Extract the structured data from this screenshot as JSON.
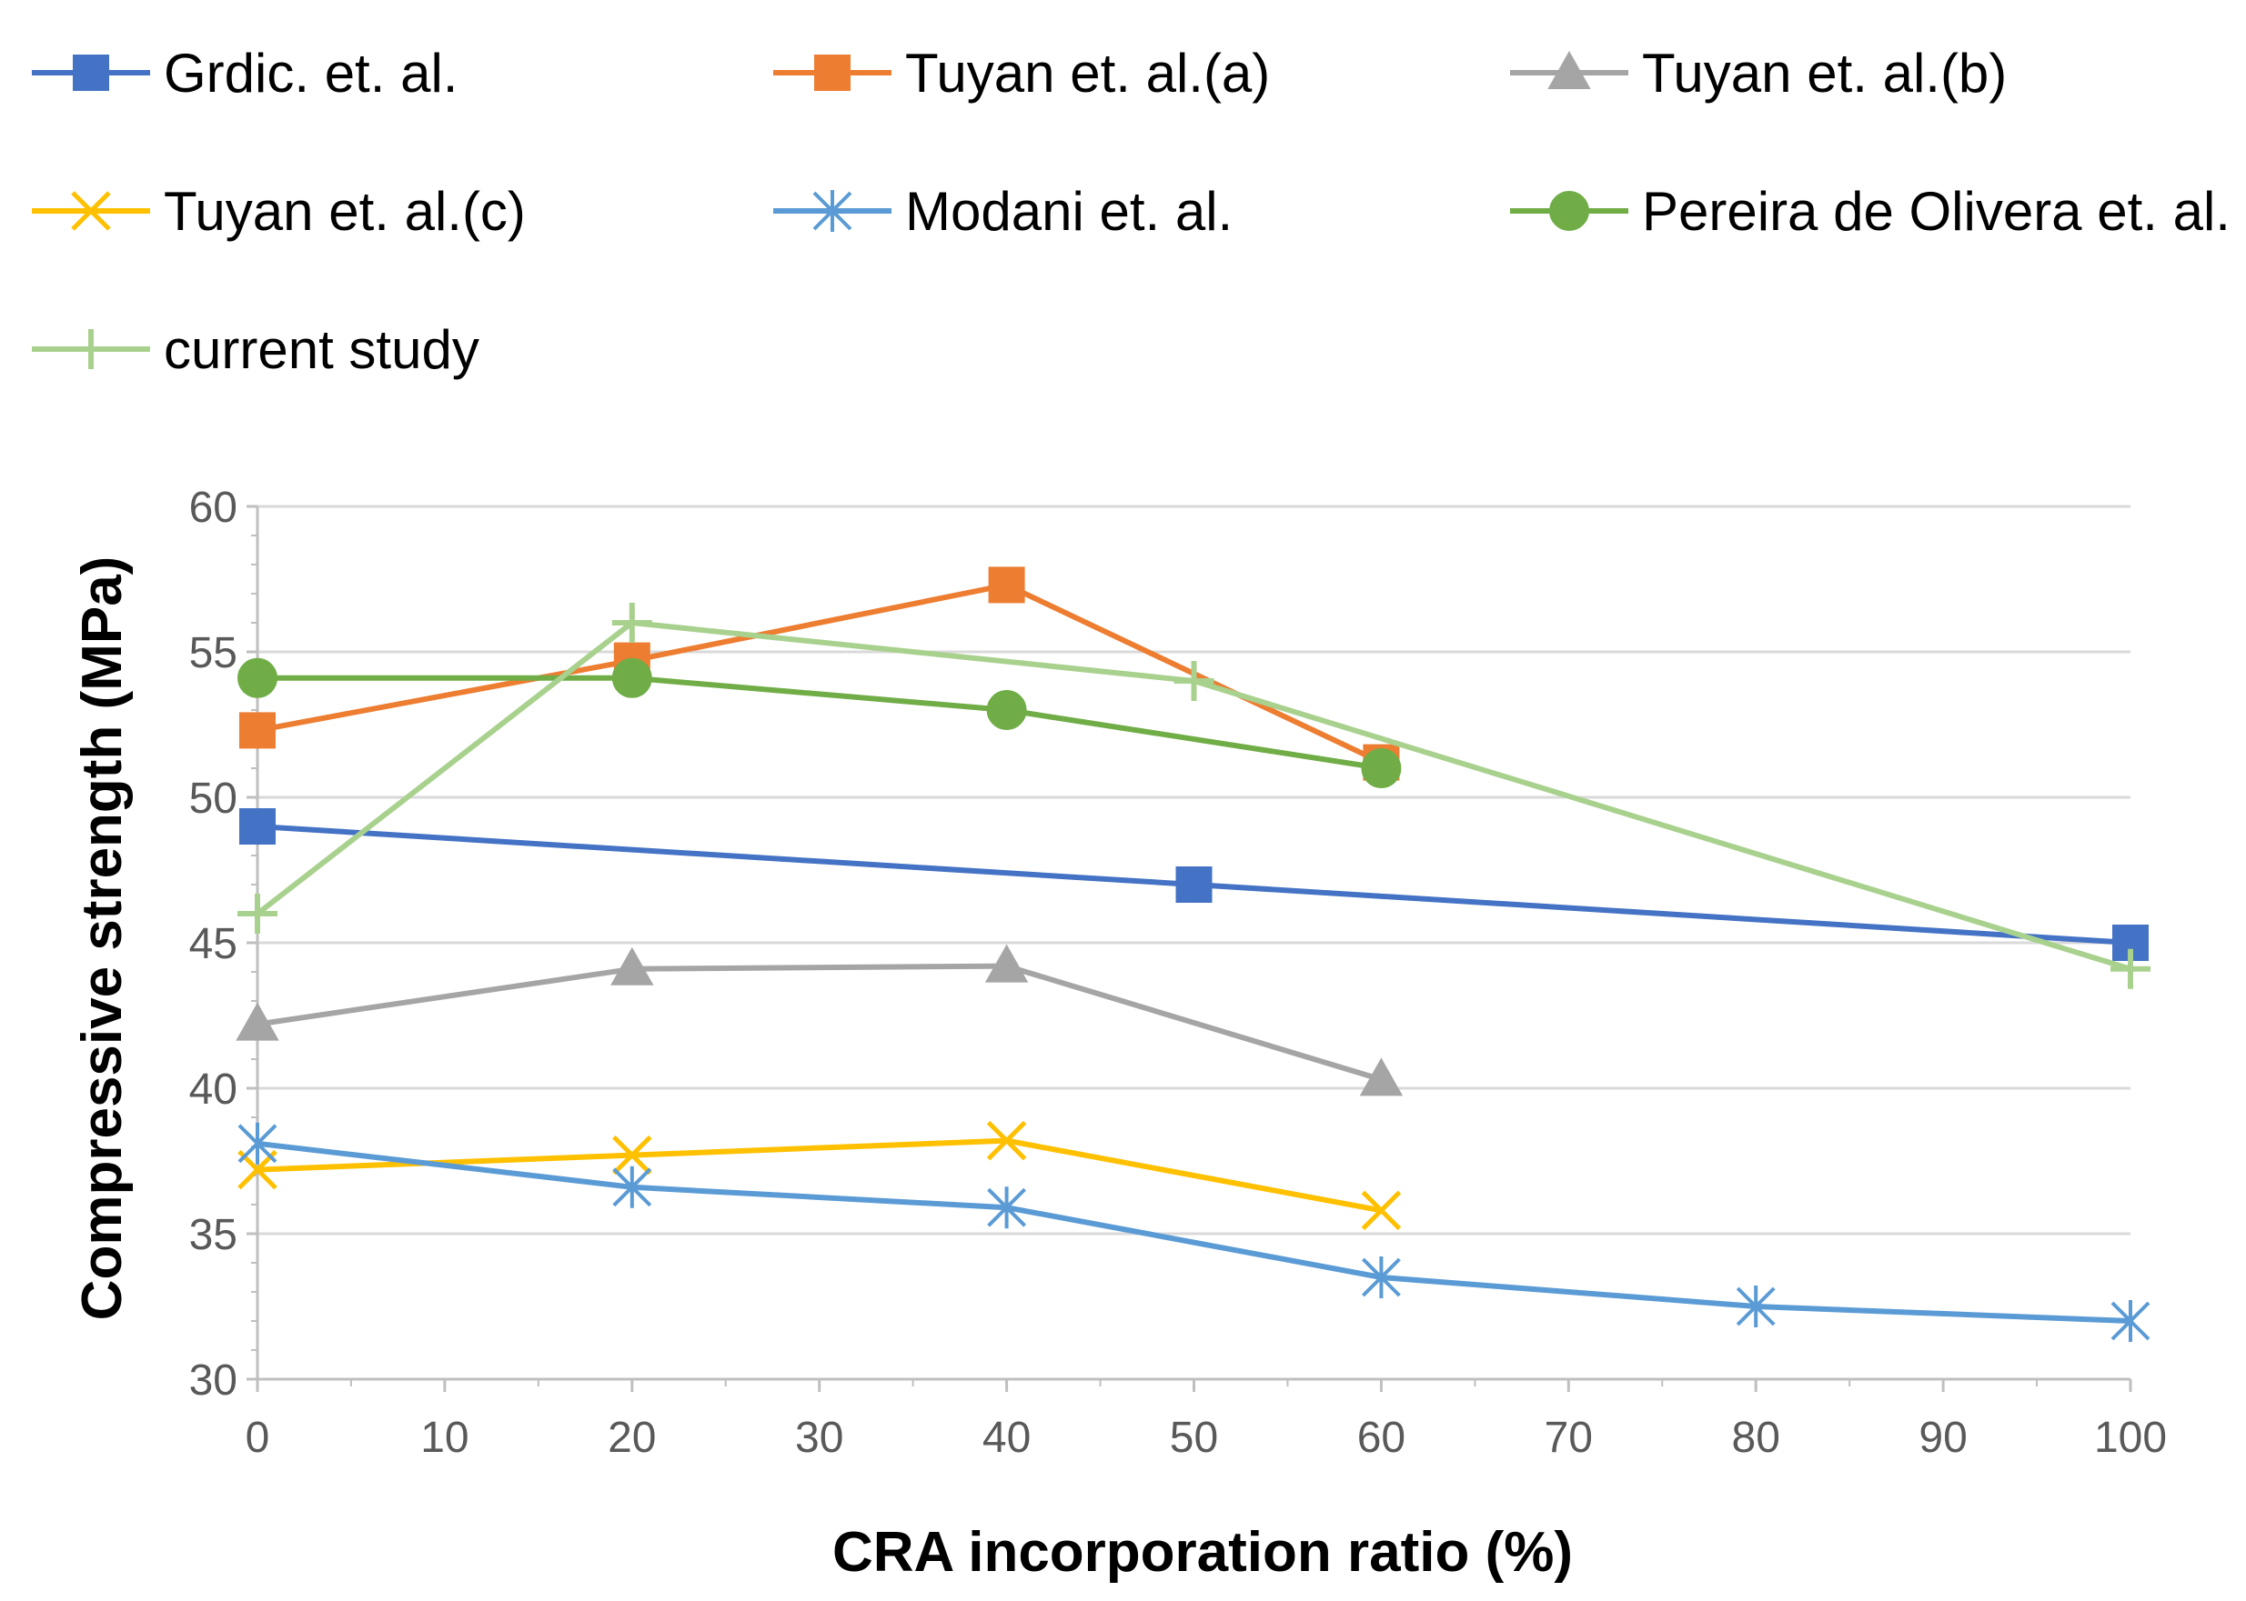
{
  "chart_data": {
    "type": "line",
    "title": "",
    "xlabel": "CRA incorporation ratio (%)",
    "ylabel": "Compressive strength (MPa)",
    "xlim": [
      0,
      100
    ],
    "ylim": [
      30,
      60
    ],
    "xticks": [
      0,
      10,
      20,
      30,
      40,
      50,
      60,
      70,
      80,
      90,
      100
    ],
    "yticks": [
      30,
      35,
      40,
      45,
      50,
      55,
      60
    ],
    "grid": "horizontal",
    "legend_position": "top",
    "series": [
      {
        "name": "Grdic. et. al.",
        "color": "#4472C4",
        "marker": "square",
        "x": [
          0,
          50,
          100
        ],
        "y": [
          49,
          47,
          45
        ]
      },
      {
        "name": "Tuyan et. al.(a)",
        "color": "#ED7D31",
        "marker": "square",
        "x": [
          0,
          20,
          40,
          60
        ],
        "y": [
          52.3,
          54.7,
          57.3,
          51.2
        ]
      },
      {
        "name": "Tuyan et. al.(b)",
        "color": "#A5A5A5",
        "marker": "triangle",
        "x": [
          0,
          20,
          40,
          60
        ],
        "y": [
          42.2,
          44.1,
          44.2,
          40.3
        ]
      },
      {
        "name": "Tuyan et. al.(c)",
        "color": "#FFC000",
        "marker": "x",
        "x": [
          0,
          20,
          40,
          60
        ],
        "y": [
          37.2,
          37.7,
          38.2,
          35.8
        ]
      },
      {
        "name": "Modani et. al.",
        "color": "#5B9BD5",
        "marker": "asterisk",
        "x": [
          0,
          20,
          40,
          60,
          80,
          100
        ],
        "y": [
          38.1,
          36.6,
          35.9,
          33.5,
          32.5,
          32
        ]
      },
      {
        "name": "Pereira de Olivera et. al.",
        "color": "#70AD47",
        "marker": "circle",
        "x": [
          0,
          20,
          40,
          60
        ],
        "y": [
          54.1,
          54.1,
          53,
          51
        ]
      },
      {
        "name": "current study",
        "color": "#A9D18E",
        "marker": "plus",
        "x": [
          0,
          20,
          50,
          100
        ],
        "y": [
          46,
          56,
          54,
          44.1
        ]
      }
    ]
  }
}
